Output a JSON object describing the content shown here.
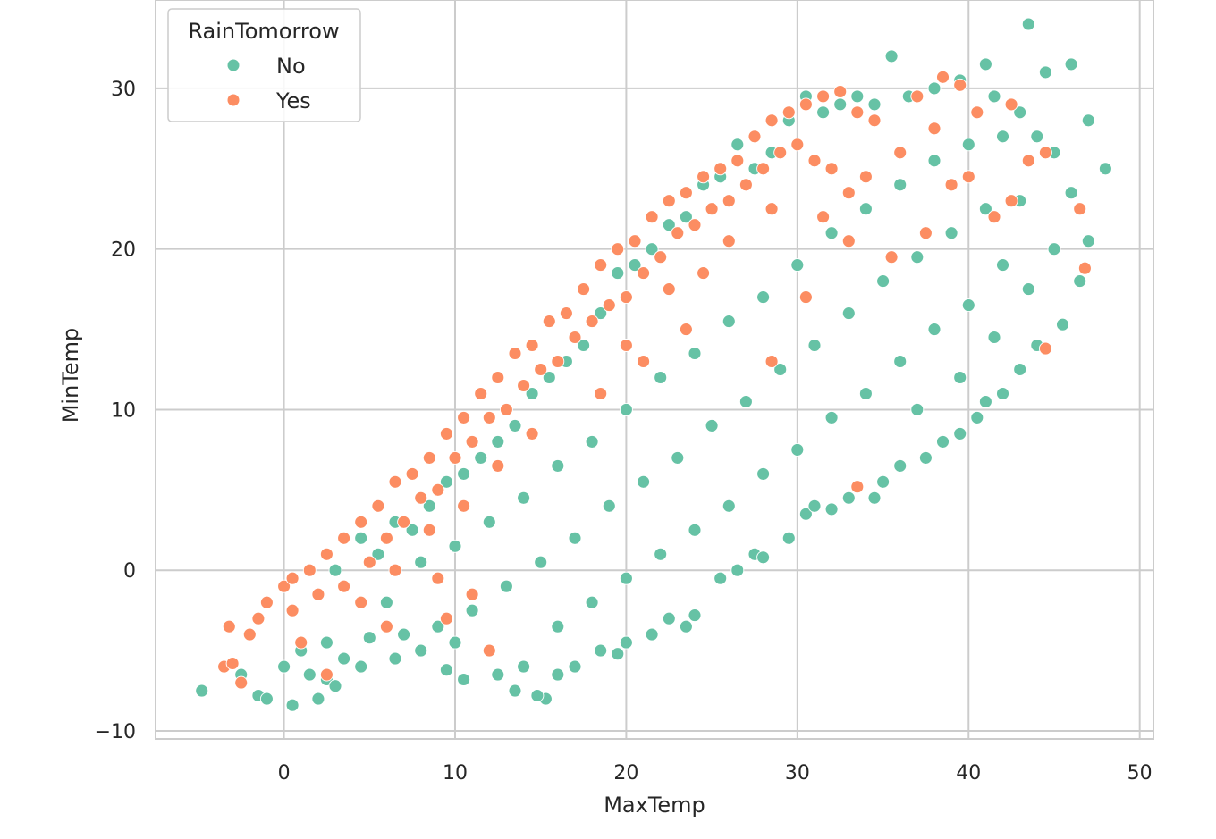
{
  "chart_data": {
    "type": "scatter",
    "title": "",
    "xlabel": "MaxTemp",
    "ylabel": "MinTemp",
    "xlim": [
      -7.5,
      50.8
    ],
    "ylim": [
      -10.5,
      35.5
    ],
    "xticks": [
      0,
      10,
      20,
      30,
      40,
      50
    ],
    "yticks": [
      -10,
      0,
      10,
      20,
      30
    ],
    "xtick_labels": [
      "0",
      "10",
      "20",
      "30",
      "40",
      "50"
    ],
    "ytick_labels": [
      "−10",
      "0",
      "10",
      "20",
      "30"
    ],
    "grid": true,
    "legend": {
      "title": "RainTomorrow",
      "position": "top-left"
    },
    "series": [
      {
        "name": "No",
        "color": "#66c2a5",
        "points": [
          [
            -4.8,
            -7.5
          ],
          [
            -2.5,
            -6.5
          ],
          [
            -1.5,
            -7.8
          ],
          [
            -1.0,
            -8.0
          ],
          [
            0.5,
            -8.4
          ],
          [
            2.0,
            -8.0
          ],
          [
            0.0,
            -6.0
          ],
          [
            1.5,
            -6.5
          ],
          [
            2.5,
            -6.8
          ],
          [
            3.0,
            -7.2
          ],
          [
            1.0,
            -5.0
          ],
          [
            2.5,
            -4.5
          ],
          [
            3.5,
            -5.5
          ],
          [
            4.5,
            -6.0
          ],
          [
            5.0,
            -4.2
          ],
          [
            6.5,
            -5.5
          ],
          [
            7.0,
            -4.0
          ],
          [
            8.0,
            -5.0
          ],
          [
            9.0,
            -3.5
          ],
          [
            10.0,
            -4.5
          ],
          [
            9.5,
            -6.2
          ],
          [
            10.5,
            -6.8
          ],
          [
            12.5,
            -6.5
          ],
          [
            13.5,
            -7.5
          ],
          [
            14.0,
            -6.0
          ],
          [
            15.3,
            -8.0
          ],
          [
            14.8,
            -7.8
          ],
          [
            16.0,
            -6.5
          ],
          [
            17.0,
            -6.0
          ],
          [
            18.5,
            -5.0
          ],
          [
            19.5,
            -5.2
          ],
          [
            20.0,
            -4.5
          ],
          [
            21.5,
            -4.0
          ],
          [
            22.5,
            -3.0
          ],
          [
            23.5,
            -3.5
          ],
          [
            24.0,
            -2.8
          ],
          [
            25.5,
            -0.5
          ],
          [
            26.5,
            0.0
          ],
          [
            27.5,
            1.0
          ],
          [
            28.0,
            0.8
          ],
          [
            29.5,
            2.0
          ],
          [
            30.5,
            3.5
          ],
          [
            31.0,
            4.0
          ],
          [
            32.0,
            3.8
          ],
          [
            33.0,
            4.5
          ],
          [
            34.5,
            4.5
          ],
          [
            35.0,
            5.5
          ],
          [
            36.0,
            6.5
          ],
          [
            37.5,
            7.0
          ],
          [
            38.5,
            8.0
          ],
          [
            39.5,
            8.5
          ],
          [
            40.5,
            9.5
          ],
          [
            41.0,
            10.5
          ],
          [
            42.0,
            11.0
          ],
          [
            43.0,
            12.5
          ],
          [
            44.0,
            14.0
          ],
          [
            45.5,
            15.3
          ],
          [
            46.5,
            18.0
          ],
          [
            47.0,
            20.5
          ],
          [
            48.0,
            25.0
          ],
          [
            47.0,
            28.0
          ],
          [
            46.0,
            31.5
          ],
          [
            44.5,
            31.0
          ],
          [
            43.5,
            34.0
          ],
          [
            41.0,
            31.5
          ],
          [
            35.5,
            32.0
          ],
          [
            3.0,
            0.0
          ],
          [
            4.5,
            2.0
          ],
          [
            5.5,
            1.0
          ],
          [
            6.5,
            3.0
          ],
          [
            7.5,
            2.5
          ],
          [
            8.5,
            4.0
          ],
          [
            9.5,
            5.5
          ],
          [
            10.5,
            6.0
          ],
          [
            11.5,
            7.0
          ],
          [
            12.5,
            8.0
          ],
          [
            13.5,
            9.0
          ],
          [
            14.5,
            11.0
          ],
          [
            15.5,
            12.0
          ],
          [
            16.5,
            13.0
          ],
          [
            17.5,
            14.0
          ],
          [
            18.5,
            16.0
          ],
          [
            19.5,
            18.5
          ],
          [
            20.5,
            19.0
          ],
          [
            21.5,
            20.0
          ],
          [
            22.5,
            21.5
          ],
          [
            23.5,
            22.0
          ],
          [
            24.5,
            24.0
          ],
          [
            25.5,
            24.5
          ],
          [
            26.5,
            26.5
          ],
          [
            27.5,
            25.0
          ],
          [
            28.5,
            26.0
          ],
          [
            29.5,
            28.0
          ],
          [
            30.5,
            29.5
          ],
          [
            31.5,
            28.5
          ],
          [
            32.5,
            29.0
          ],
          [
            33.5,
            29.5
          ],
          [
            34.5,
            29.0
          ],
          [
            36.5,
            29.5
          ],
          [
            38.0,
            30.0
          ],
          [
            39.5,
            30.5
          ],
          [
            41.5,
            29.5
          ],
          [
            43.0,
            28.5
          ],
          [
            6.0,
            -2.0
          ],
          [
            8.0,
            0.5
          ],
          [
            10.0,
            1.5
          ],
          [
            12.0,
            3.0
          ],
          [
            14.0,
            4.5
          ],
          [
            16.0,
            6.5
          ],
          [
            18.0,
            8.0
          ],
          [
            20.0,
            10.0
          ],
          [
            22.0,
            12.0
          ],
          [
            24.0,
            13.5
          ],
          [
            26.0,
            15.5
          ],
          [
            28.0,
            17.0
          ],
          [
            30.0,
            19.0
          ],
          [
            32.0,
            21.0
          ],
          [
            34.0,
            22.5
          ],
          [
            36.0,
            24.0
          ],
          [
            38.0,
            25.5
          ],
          [
            40.0,
            26.5
          ],
          [
            42.0,
            27.0
          ],
          [
            44.0,
            27.0
          ],
          [
            45.0,
            26.0
          ],
          [
            46.0,
            23.5
          ],
          [
            45.0,
            20.0
          ],
          [
            43.5,
            17.5
          ],
          [
            11.0,
            -2.5
          ],
          [
            13.0,
            -1.0
          ],
          [
            15.0,
            0.5
          ],
          [
            17.0,
            2.0
          ],
          [
            19.0,
            4.0
          ],
          [
            21.0,
            5.5
          ],
          [
            23.0,
            7.0
          ],
          [
            25.0,
            9.0
          ],
          [
            27.0,
            10.5
          ],
          [
            29.0,
            12.5
          ],
          [
            31.0,
            14.0
          ],
          [
            33.0,
            16.0
          ],
          [
            35.0,
            18.0
          ],
          [
            37.0,
            19.5
          ],
          [
            39.0,
            21.0
          ],
          [
            41.0,
            22.5
          ],
          [
            43.0,
            23.0
          ],
          [
            42.0,
            19.0
          ],
          [
            16.0,
            -3.5
          ],
          [
            18.0,
            -2.0
          ],
          [
            20.0,
            -0.5
          ],
          [
            22.0,
            1.0
          ],
          [
            24.0,
            2.5
          ],
          [
            26.0,
            4.0
          ],
          [
            28.0,
            6.0
          ],
          [
            30.0,
            7.5
          ],
          [
            32.0,
            9.5
          ],
          [
            34.0,
            11.0
          ],
          [
            36.0,
            13.0
          ],
          [
            38.0,
            15.0
          ],
          [
            40.0,
            16.5
          ],
          [
            41.5,
            14.5
          ],
          [
            39.5,
            12.0
          ],
          [
            37.0,
            10.0
          ]
        ]
      },
      {
        "name": "Yes",
        "color": "#fc8d62",
        "points": [
          [
            -3.5,
            -6.0
          ],
          [
            -3.0,
            -5.8
          ],
          [
            -2.5,
            -7.0
          ],
          [
            -3.2,
            -3.5
          ],
          [
            -2.0,
            -4.0
          ],
          [
            -1.5,
            -3.0
          ],
          [
            -1.0,
            -2.0
          ],
          [
            0.0,
            -1.0
          ],
          [
            0.5,
            -0.5
          ],
          [
            1.5,
            0.0
          ],
          [
            2.5,
            1.0
          ],
          [
            3.5,
            2.0
          ],
          [
            4.5,
            3.0
          ],
          [
            5.5,
            4.0
          ],
          [
            6.5,
            5.5
          ],
          [
            7.5,
            6.0
          ],
          [
            8.5,
            7.0
          ],
          [
            9.5,
            8.5
          ],
          [
            10.5,
            9.5
          ],
          [
            11.5,
            11.0
          ],
          [
            12.5,
            12.0
          ],
          [
            13.5,
            13.5
          ],
          [
            14.5,
            14.0
          ],
          [
            15.5,
            15.5
          ],
          [
            16.5,
            16.0
          ],
          [
            17.5,
            17.5
          ],
          [
            18.5,
            19.0
          ],
          [
            19.5,
            20.0
          ],
          [
            20.5,
            20.5
          ],
          [
            21.5,
            22.0
          ],
          [
            22.5,
            23.0
          ],
          [
            23.5,
            23.5
          ],
          [
            24.5,
            24.5
          ],
          [
            25.5,
            25.0
          ],
          [
            26.5,
            25.5
          ],
          [
            27.5,
            27.0
          ],
          [
            28.5,
            28.0
          ],
          [
            29.5,
            28.5
          ],
          [
            30.5,
            29.0
          ],
          [
            31.5,
            29.5
          ],
          [
            32.5,
            29.8
          ],
          [
            33.5,
            28.5
          ],
          [
            34.5,
            28.0
          ],
          [
            37.0,
            29.5
          ],
          [
            38.5,
            30.7
          ],
          [
            39.5,
            30.2
          ],
          [
            40.5,
            28.5
          ],
          [
            42.5,
            29.0
          ],
          [
            43.5,
            25.5
          ],
          [
            44.5,
            26.0
          ],
          [
            46.5,
            22.5
          ],
          [
            46.8,
            18.8
          ],
          [
            44.5,
            13.8
          ],
          [
            33.5,
            5.2
          ],
          [
            1.0,
            -4.5
          ],
          [
            0.5,
            -2.5
          ],
          [
            2.0,
            -1.5
          ],
          [
            3.5,
            -1.0
          ],
          [
            5.0,
            0.5
          ],
          [
            6.0,
            2.0
          ],
          [
            7.0,
            3.0
          ],
          [
            8.0,
            4.5
          ],
          [
            9.0,
            5.0
          ],
          [
            10.0,
            7.0
          ],
          [
            11.0,
            8.0
          ],
          [
            12.0,
            9.5
          ],
          [
            13.0,
            10.0
          ],
          [
            14.0,
            11.5
          ],
          [
            15.0,
            12.5
          ],
          [
            16.0,
            13.0
          ],
          [
            17.0,
            14.5
          ],
          [
            18.0,
            15.5
          ],
          [
            19.0,
            16.5
          ],
          [
            20.0,
            17.0
          ],
          [
            21.0,
            18.5
          ],
          [
            22.0,
            19.5
          ],
          [
            23.0,
            21.0
          ],
          [
            24.0,
            21.5
          ],
          [
            25.0,
            22.5
          ],
          [
            26.0,
            23.0
          ],
          [
            27.0,
            24.0
          ],
          [
            28.0,
            25.0
          ],
          [
            29.0,
            26.0
          ],
          [
            30.0,
            26.5
          ],
          [
            31.0,
            25.5
          ],
          [
            32.0,
            25.0
          ],
          [
            33.0,
            23.5
          ],
          [
            34.0,
            24.5
          ],
          [
            36.0,
            26.0
          ],
          [
            38.0,
            27.5
          ],
          [
            39.0,
            24.0
          ],
          [
            40.0,
            24.5
          ],
          [
            41.5,
            22.0
          ],
          [
            42.5,
            23.0
          ],
          [
            20.0,
            14.0
          ],
          [
            22.5,
            17.5
          ],
          [
            24.5,
            18.5
          ],
          [
            26.0,
            20.5
          ],
          [
            28.5,
            22.5
          ],
          [
            31.5,
            22.0
          ],
          [
            33.0,
            20.5
          ],
          [
            35.5,
            19.5
          ],
          [
            37.5,
            21.0
          ],
          [
            30.5,
            17.0
          ],
          [
            28.5,
            13.0
          ],
          [
            23.5,
            15.0
          ],
          [
            21.0,
            13.0
          ],
          [
            18.5,
            11.0
          ],
          [
            14.5,
            8.5
          ],
          [
            12.5,
            6.5
          ],
          [
            10.5,
            4.0
          ],
          [
            8.5,
            2.5
          ],
          [
            6.5,
            0.0
          ],
          [
            4.5,
            -2.0
          ],
          [
            9.0,
            -0.5
          ],
          [
            11.0,
            -1.5
          ],
          [
            12.0,
            -5.0
          ],
          [
            6.0,
            -3.5
          ],
          [
            2.5,
            -6.5
          ],
          [
            9.5,
            -3.0
          ]
        ]
      }
    ]
  }
}
